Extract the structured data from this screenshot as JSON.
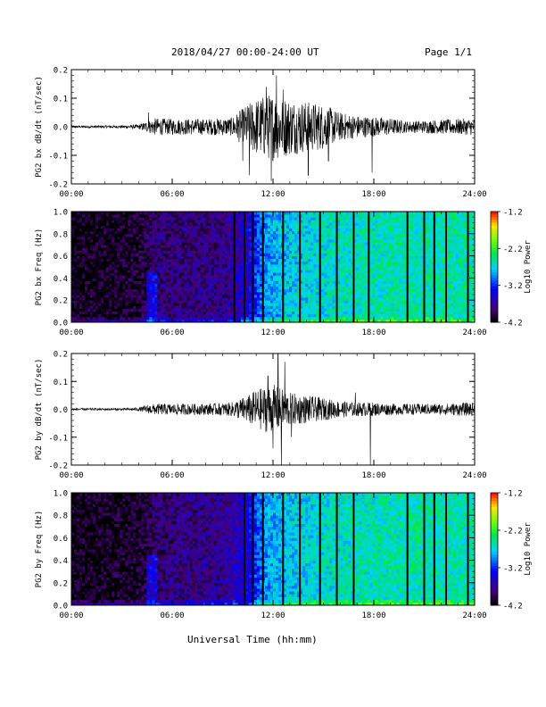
{
  "header": {
    "title": "2018/04/27  00:00-24:00 UT",
    "page": "Page 1/1"
  },
  "footer": {
    "xlabel": "Universal Time (hh:mm)"
  },
  "chart_data": [
    {
      "type": "line",
      "ylabel": "PG2 bx dB/dt (nT/sec)",
      "ylim": [
        -0.2,
        0.2
      ],
      "yticks": [
        "-0.2",
        "-0.1",
        "0.0",
        "0.1",
        "0.2"
      ],
      "ytick_values": [
        -0.2,
        -0.1,
        0.0,
        0.1,
        0.2
      ],
      "xlim": [
        0,
        24
      ],
      "xticks": [
        "00:00",
        "06:00",
        "12:00",
        "18:00",
        "24:00"
      ],
      "envelope_hours": [
        0,
        3,
        4,
        4.5,
        5,
        6,
        8,
        9.5,
        10.5,
        11,
        12,
        13,
        14,
        15,
        16,
        17,
        18,
        19,
        20,
        22,
        24
      ],
      "envelope_amplitude": [
        0.004,
        0.005,
        0.008,
        0.02,
        0.03,
        0.028,
        0.028,
        0.032,
        0.08,
        0.1,
        0.12,
        0.1,
        0.09,
        0.08,
        0.05,
        0.04,
        0.035,
        0.03,
        0.02,
        0.025,
        0.03
      ],
      "spikes": [
        [
          4.6,
          0.05
        ],
        [
          10.2,
          -0.12
        ],
        [
          10.6,
          -0.17
        ],
        [
          11.6,
          0.14
        ],
        [
          11.9,
          -0.19
        ],
        [
          12.2,
          0.18
        ],
        [
          12.6,
          0.13
        ],
        [
          14.1,
          -0.17
        ],
        [
          15.3,
          -0.12
        ],
        [
          17.9,
          -0.16
        ]
      ]
    },
    {
      "type": "heatmap",
      "ylabel": "PG2 bx Freq (Hz)",
      "ylim": [
        0,
        1
      ],
      "yticks": [
        "0.0",
        "0.2",
        "0.4",
        "0.6",
        "0.8",
        "1.0"
      ],
      "ytick_values": [
        0,
        0.2,
        0.4,
        0.6,
        0.8,
        1.0
      ],
      "xlim": [
        0,
        24
      ],
      "xticks": [
        "00:00",
        "06:00",
        "12:00",
        "18:00",
        "24:00"
      ],
      "colorbar_label": "Log10 Power",
      "colorbar_ticks": [
        "-1.2",
        "-2.2",
        "-3.2",
        "-4.2"
      ],
      "colorbar_values": [
        -1.2,
        -2.2,
        -3.2,
        -4.2
      ],
      "clim": [
        -4.2,
        -1.2
      ],
      "background_hours": [
        0,
        4,
        5,
        9,
        10.5,
        11.5,
        13,
        16,
        20,
        24
      ],
      "background_level": [
        -4.15,
        -4.1,
        -3.85,
        -3.8,
        -3.5,
        -2.9,
        -2.75,
        -2.6,
        -2.55,
        -2.55
      ],
      "gap_lines_hours": [
        9.7,
        10.3,
        10.8,
        11.4,
        12.6,
        13.6,
        14.8,
        15.8,
        16.8,
        17.7,
        20.0,
        21.0,
        21.6,
        22.3,
        23.6
      ]
    },
    {
      "type": "line",
      "ylabel": "PG2 by dB/dt (nT/sec)",
      "ylim": [
        -0.2,
        0.2
      ],
      "yticks": [
        "-0.2",
        "-0.1",
        "0.0",
        "0.1",
        "0.2"
      ],
      "ytick_values": [
        -0.2,
        -0.1,
        0.0,
        0.1,
        0.2
      ],
      "xlim": [
        0,
        24
      ],
      "xticks": [
        "00:00",
        "06:00",
        "12:00",
        "18:00",
        "24:00"
      ],
      "envelope_hours": [
        0,
        3,
        4,
        4.5,
        5,
        6,
        8,
        9.5,
        10.5,
        11,
        12,
        13,
        14,
        15,
        16,
        17,
        18,
        19,
        20,
        22,
        24
      ],
      "envelope_amplitude": [
        0.004,
        0.004,
        0.006,
        0.015,
        0.02,
        0.02,
        0.02,
        0.025,
        0.05,
        0.07,
        0.09,
        0.06,
        0.05,
        0.04,
        0.03,
        0.025,
        0.025,
        0.02,
        0.02,
        0.02,
        0.025
      ],
      "spikes": [
        [
          11.7,
          0.12
        ],
        [
          12.0,
          -0.14
        ],
        [
          12.3,
          0.2
        ],
        [
          12.5,
          -0.2
        ],
        [
          12.7,
          0.17
        ],
        [
          13.1,
          -0.1
        ],
        [
          16.9,
          0.06
        ],
        [
          17.8,
          -0.2
        ]
      ]
    },
    {
      "type": "heatmap",
      "ylabel": "PG2 by Freq (Hz)",
      "ylim": [
        0,
        1
      ],
      "yticks": [
        "0.0",
        "0.2",
        "0.4",
        "0.6",
        "0.8",
        "1.0"
      ],
      "ytick_values": [
        0,
        0.2,
        0.4,
        0.6,
        0.8,
        1.0
      ],
      "xlim": [
        0,
        24
      ],
      "xticks": [
        "00:00",
        "06:00",
        "12:00",
        "18:00",
        "24:00"
      ],
      "colorbar_label": "Log10 Power",
      "colorbar_ticks": [
        "-1.2",
        "-2.2",
        "-3.2",
        "-4.2"
      ],
      "colorbar_values": [
        -1.2,
        -2.2,
        -3.2,
        -4.2
      ],
      "clim": [
        -4.2,
        -1.2
      ],
      "background_hours": [
        0,
        4,
        5,
        9,
        10.5,
        11.5,
        13,
        16,
        20,
        24
      ],
      "background_level": [
        -4.15,
        -4.1,
        -3.85,
        -3.75,
        -3.45,
        -2.9,
        -2.75,
        -2.6,
        -2.55,
        -2.55
      ],
      "gap_lines_hours": [
        10.3,
        10.8,
        11.4,
        12.6,
        13.6,
        14.8,
        15.8,
        16.8,
        20.0,
        21.0,
        21.6,
        22.3,
        23.6
      ]
    }
  ]
}
